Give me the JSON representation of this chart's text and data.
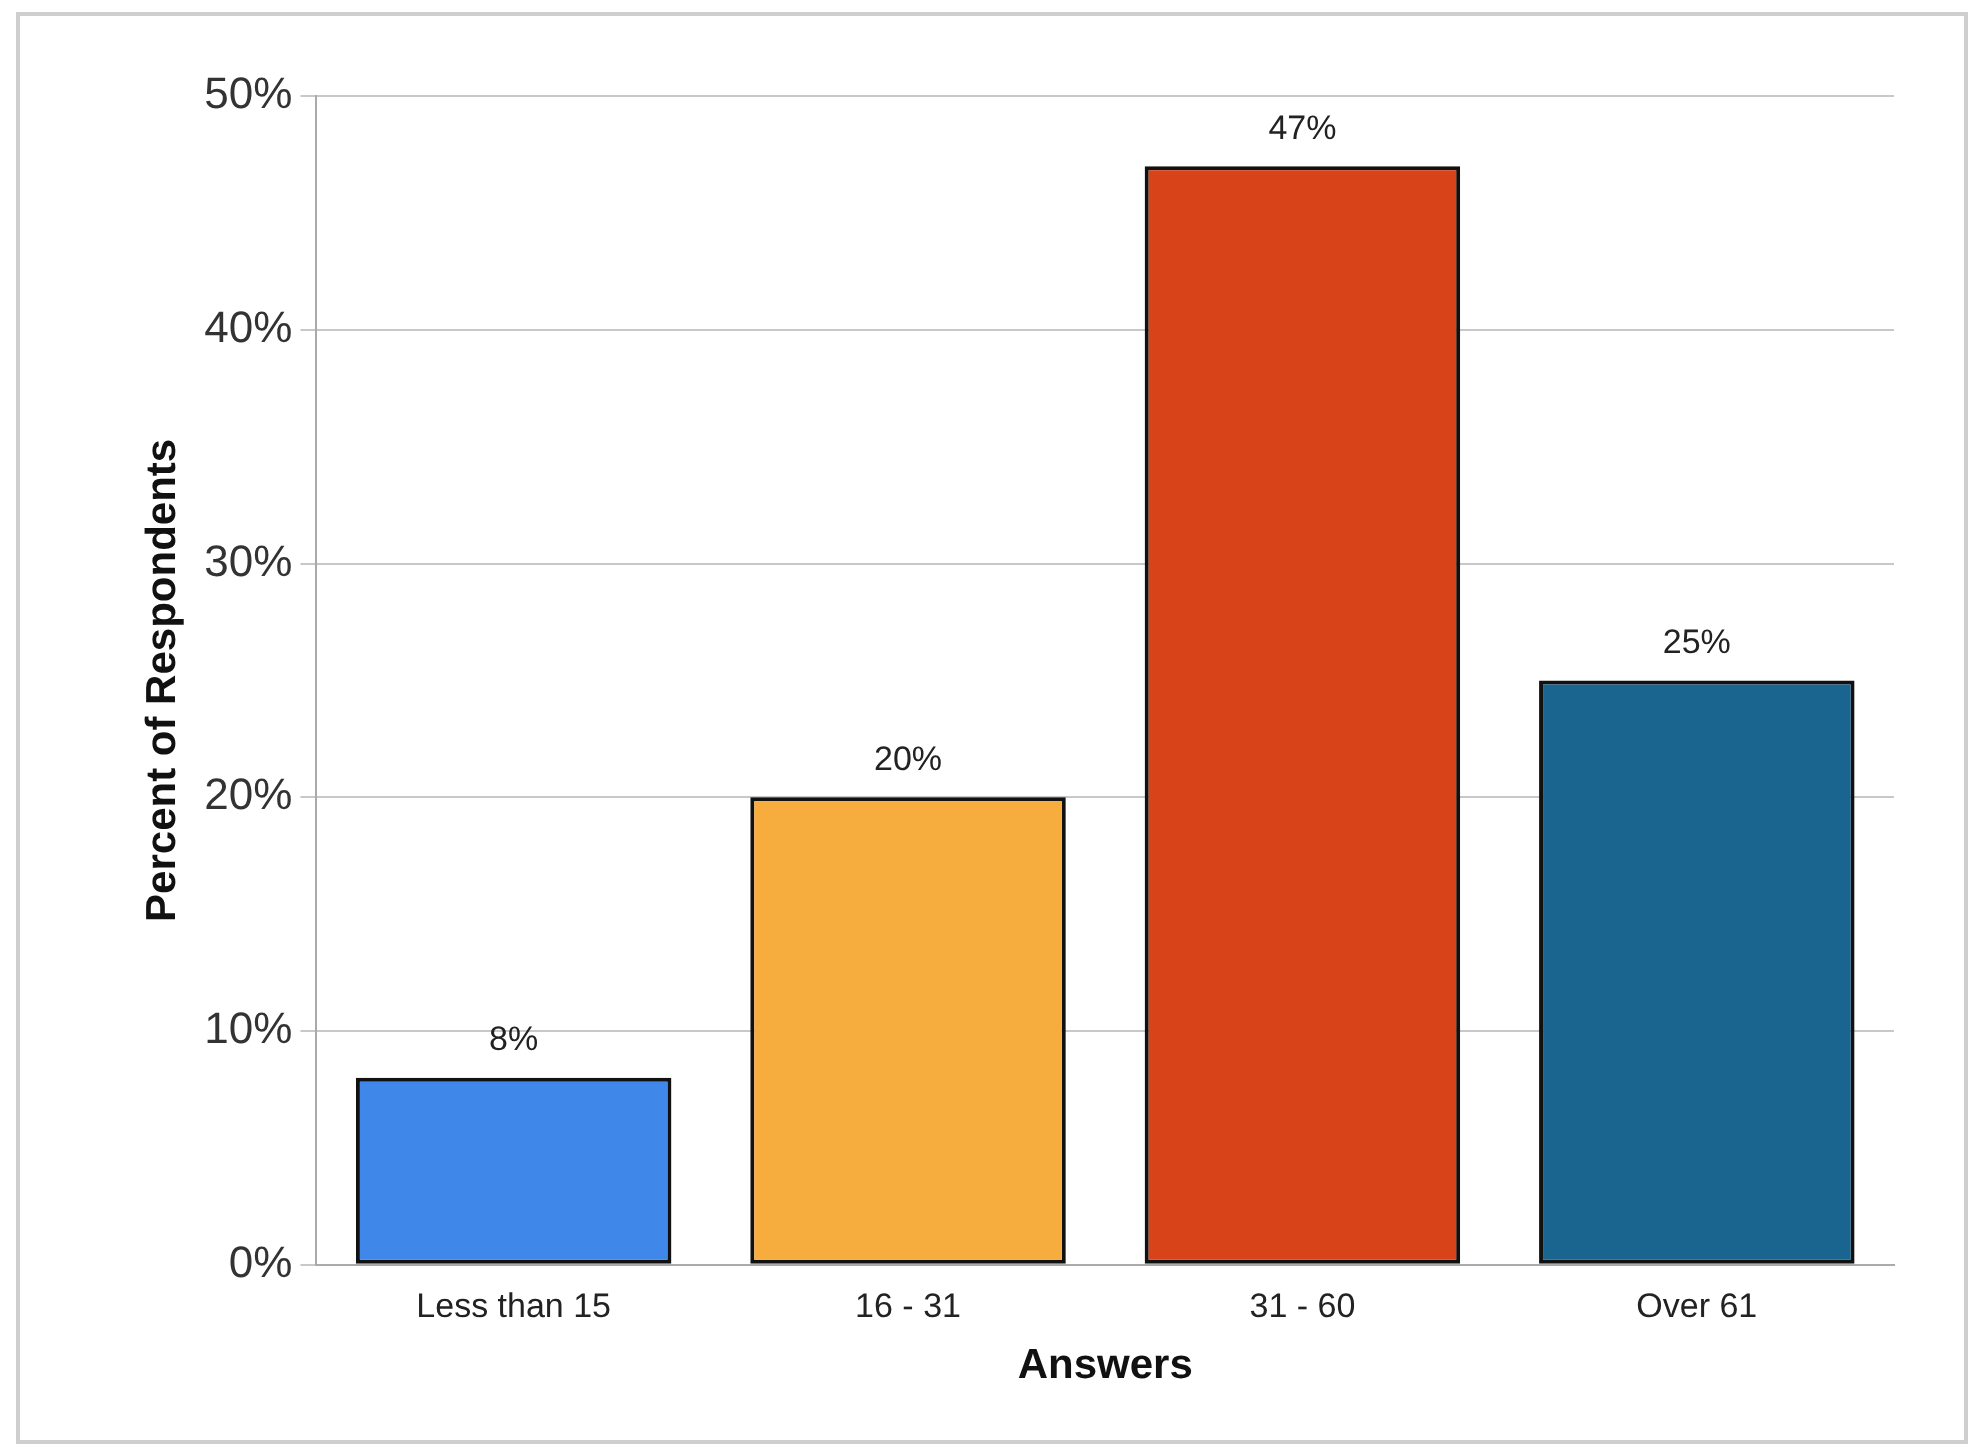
{
  "chart_data": {
    "type": "bar",
    "xlabel": "Answers",
    "ylabel": "Percent of Respondents",
    "categories": [
      "Less than 15",
      "16 - 31",
      "31 - 60",
      "Over 61"
    ],
    "values": [
      8,
      20,
      47,
      25
    ],
    "value_labels": [
      "8%",
      "20%",
      "47%",
      "25%"
    ],
    "colors": [
      "#3f87e8",
      "#f7ad3e",
      "#d9431a",
      "#1a6590"
    ],
    "ylim": [
      0,
      50
    ],
    "yticks": [
      {
        "value": 0,
        "label": "0%"
      },
      {
        "value": 10,
        "label": "10%"
      },
      {
        "value": 20,
        "label": "20%"
      },
      {
        "value": 30,
        "label": "30%"
      },
      {
        "value": 40,
        "label": "40%"
      },
      {
        "value": 50,
        "label": "50%"
      }
    ],
    "grid": "y"
  }
}
